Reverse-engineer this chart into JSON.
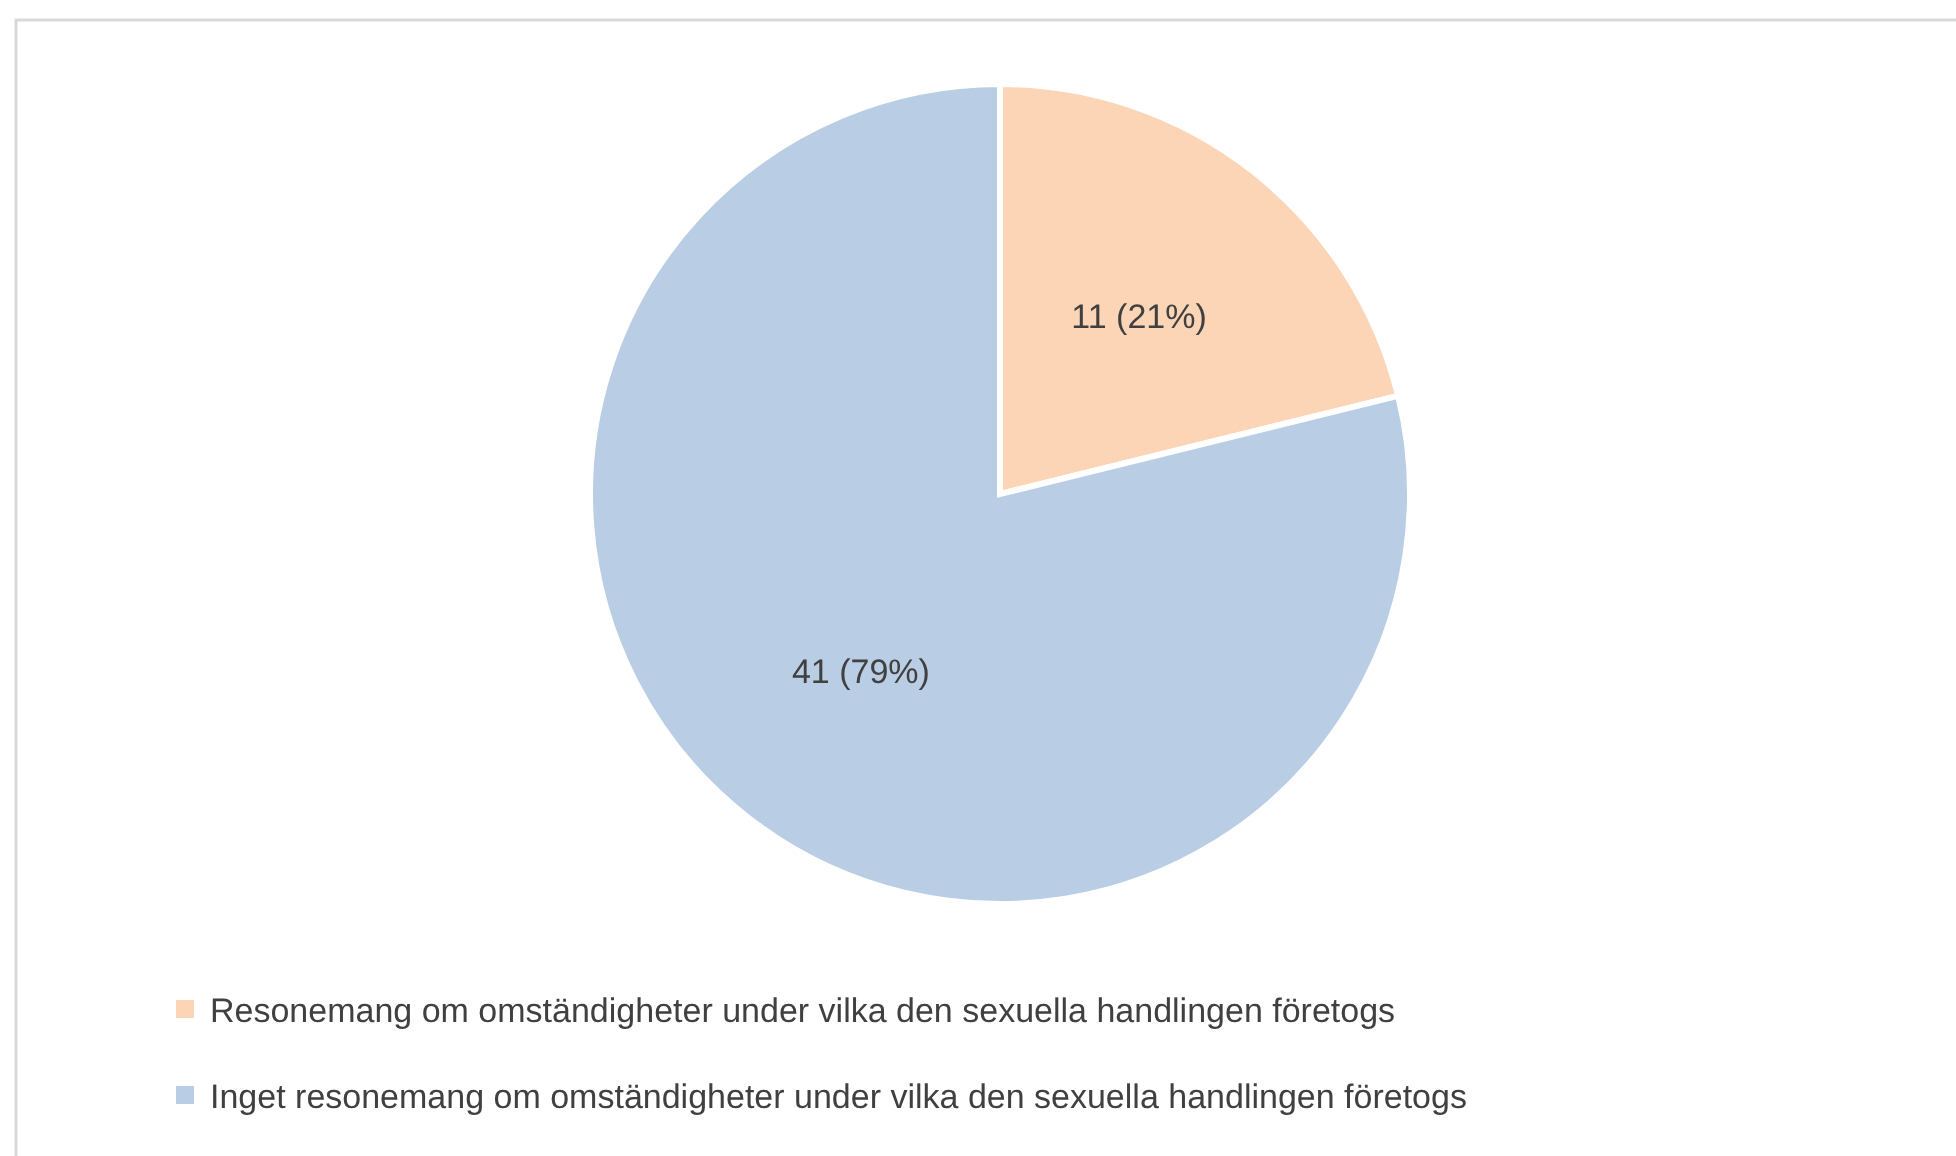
{
  "chart_data": {
    "type": "pie",
    "categories": [
      "Resonemang om omständigheter under vilka den sexuella handlingen företogs",
      "Inget resonemang om omständigheter under vilka den sexuella handlingen företogs"
    ],
    "values": [
      11,
      41
    ],
    "colors": [
      "#fbd5b5",
      "#b9cde5"
    ],
    "value_labels": [
      "11 (21%)",
      "41 (79%)"
    ],
    "legend": "bottom"
  }
}
